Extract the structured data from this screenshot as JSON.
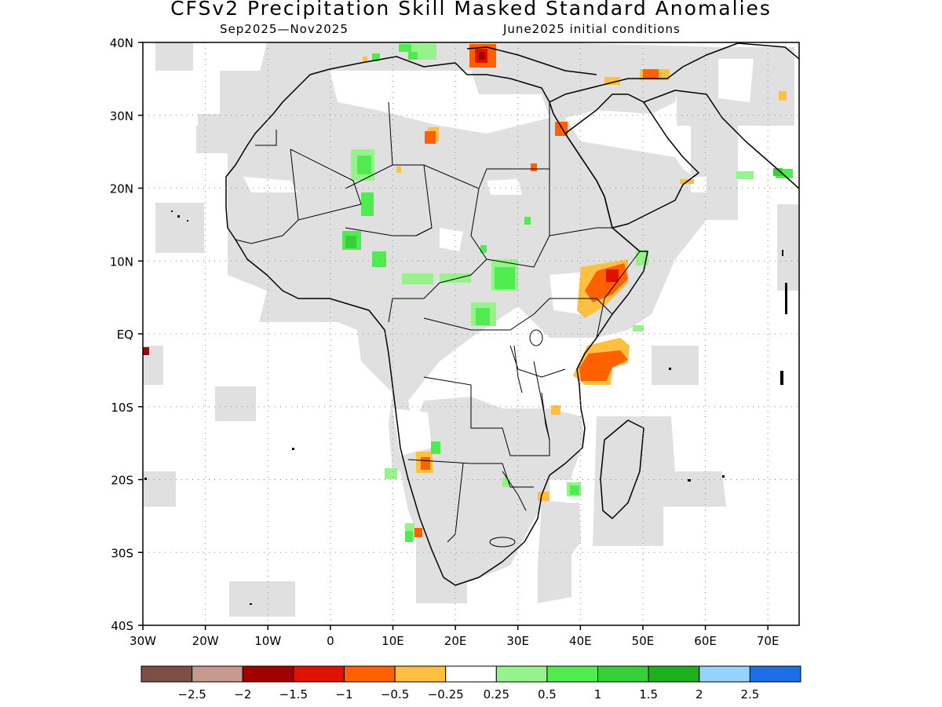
{
  "title": "CFSv2 Precipitation Skill Masked Standard Anomalies",
  "subtitle_left": "Sep2025—Nov2025",
  "subtitle_right": "June2025 initial conditions",
  "map": {
    "lon_range": [
      -30,
      75
    ],
    "lat_range": [
      -40,
      40
    ],
    "x_ticks": [
      "30W",
      "20W",
      "10W",
      "0",
      "10E",
      "20E",
      "30E",
      "40E",
      "50E",
      "60E",
      "70E"
    ],
    "y_ticks": [
      "40N",
      "30N",
      "20N",
      "10N",
      "EQ",
      "10S",
      "20S",
      "30S",
      "40S"
    ],
    "grid": "dotted",
    "skill_mask_color": "#e0e0e0",
    "coastline_color": "#000000"
  },
  "colorbar": {
    "colors": [
      "#7b4f45",
      "#c79a90",
      "#a00000",
      "#e11100",
      "#ff6000",
      "#ffbf40",
      "#ffffff",
      "#96f38c",
      "#50eb50",
      "#38d038",
      "#1eb01e",
      "#96d2fa",
      "#1e6ee6"
    ],
    "labels": [
      "−2.5",
      "−2",
      "−1.5",
      "−1",
      "−0.5",
      "−0.25",
      "0.25",
      "0.5",
      "1",
      "1.5",
      "2",
      "2.5"
    ]
  }
}
